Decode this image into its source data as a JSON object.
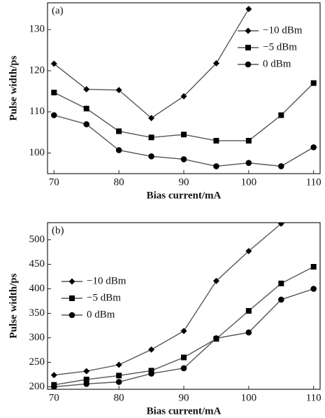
{
  "chart_data": [
    {
      "type": "line",
      "panel_label": "(a)",
      "x_label": "Bias current/mA",
      "y_label": "Pulse width/ps",
      "xlim": [
        69,
        111
      ],
      "xticks": [
        70,
        80,
        90,
        100,
        110
      ],
      "ylim": [
        95,
        136.5
      ],
      "yticks": [
        100,
        110,
        120,
        130
      ],
      "legend": "upper right",
      "series": [
        {
          "name": "−10 dBm",
          "marker": "diamond",
          "color": "#555555",
          "x": [
            70,
            75,
            80,
            85,
            90,
            95,
            100
          ],
          "values": [
            121.7,
            115.5,
            115.3,
            108.5,
            113.8,
            121.8,
            135
          ]
        },
        {
          "name": "−5 dBm",
          "marker": "square",
          "color": "#555555",
          "x": [
            70,
            75,
            80,
            85,
            90,
            95,
            100,
            105,
            110
          ],
          "values": [
            114.7,
            110.8,
            105.3,
            103.8,
            104.5,
            103,
            103,
            109.2,
            117
          ]
        },
        {
          "name": "0 dBm",
          "marker": "circle",
          "color": "#555555",
          "x": [
            70,
            75,
            80,
            85,
            90,
            95,
            100,
            105,
            110
          ],
          "values": [
            109.2,
            107,
            100.7,
            99.2,
            98.5,
            96.8,
            97.6,
            96.8,
            101.4
          ]
        }
      ]
    },
    {
      "type": "line",
      "panel_label": "(b)",
      "x_label": "Bias current/mA",
      "y_label": "Pulse width/ps",
      "xlim": [
        69,
        111
      ],
      "xticks": [
        70,
        80,
        90,
        100,
        110
      ],
      "ylim": [
        195,
        535
      ],
      "yticks": [
        200,
        250,
        300,
        350,
        400,
        450,
        500
      ],
      "legend": "center left",
      "series": [
        {
          "name": "−10 dBm",
          "marker": "diamond",
          "color": "#555555",
          "x": [
            70,
            75,
            80,
            85,
            90,
            95,
            100,
            105
          ],
          "values": [
            224,
            232,
            245,
            276,
            314,
            416,
            477,
            533
          ]
        },
        {
          "name": "−5 dBm",
          "marker": "square",
          "color": "#555555",
          "x": [
            70,
            75,
            80,
            85,
            90,
            95,
            100,
            105,
            110
          ],
          "values": [
            204,
            215,
            223,
            233,
            260,
            298,
            355,
            411,
            445
          ]
        },
        {
          "name": "0 dBm",
          "marker": "circle",
          "color": "#555555",
          "x": [
            70,
            75,
            80,
            85,
            90,
            95,
            100,
            105,
            110
          ],
          "values": [
            200,
            206,
            210,
            227,
            238,
            299,
            311,
            378,
            400
          ]
        }
      ]
    }
  ]
}
